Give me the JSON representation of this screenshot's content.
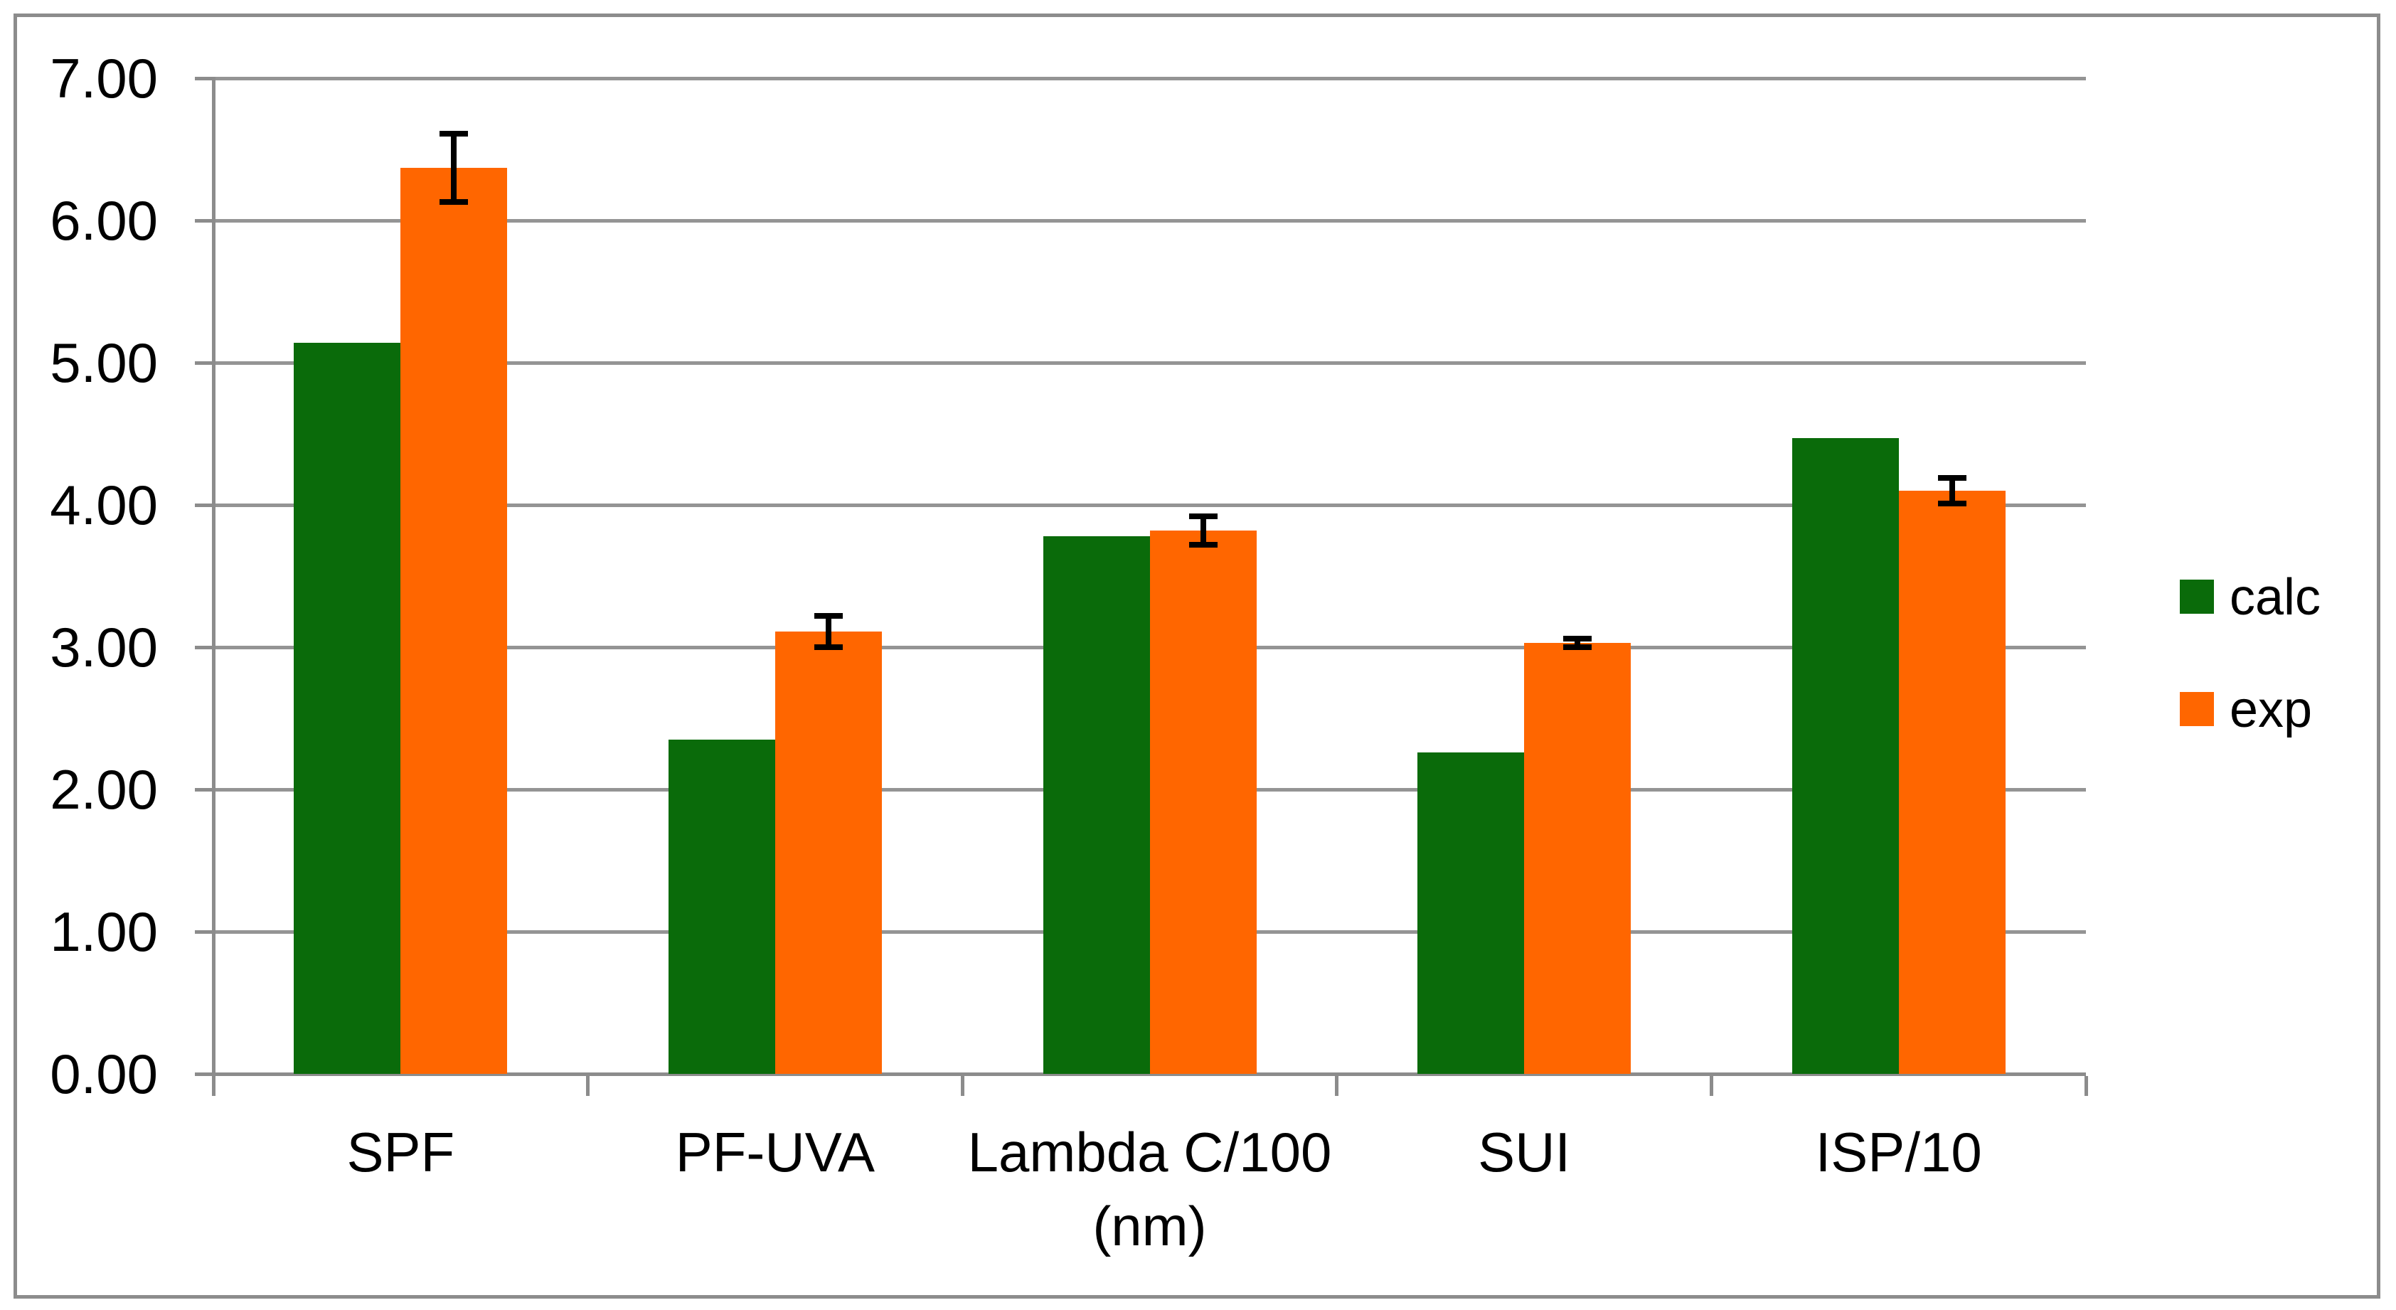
{
  "chart_data": {
    "type": "bar",
    "title": "",
    "categories": [
      "SPF",
      "PF-UVA",
      "Lambda C/100 (nm)",
      "SUI",
      "ISP/10"
    ],
    "category_label_lines": [
      [
        "SPF"
      ],
      [
        "PF-UVA"
      ],
      [
        "Lambda C/100",
        "(nm)"
      ],
      [
        "SUI"
      ],
      [
        "ISP/10"
      ]
    ],
    "series": [
      {
        "name": "calc",
        "color": "#0A6B0A",
        "values": [
          5.14,
          2.35,
          3.78,
          2.26,
          4.47
        ]
      },
      {
        "name": "exp",
        "color": "#FF6600",
        "values": [
          6.37,
          3.11,
          3.82,
          3.03,
          4.1
        ],
        "error_bars": [
          0.24,
          0.11,
          0.1,
          0.03,
          0.09
        ],
        "error_color": "#000000"
      }
    ],
    "ylim": [
      0,
      7
    ],
    "ytick_step": 1,
    "ytick_labels": [
      "0.00",
      "1.00",
      "2.00",
      "3.00",
      "4.00",
      "5.00",
      "6.00",
      "7.00"
    ],
    "grid": true,
    "gridline_color": "#949494",
    "axis_color": "#8C8C8C",
    "background": "#FFFFFF",
    "border_color": "#8C8C8C",
    "text_color": "#000000",
    "legend": {
      "position": "right",
      "entries": [
        "calc",
        "exp"
      ]
    }
  }
}
